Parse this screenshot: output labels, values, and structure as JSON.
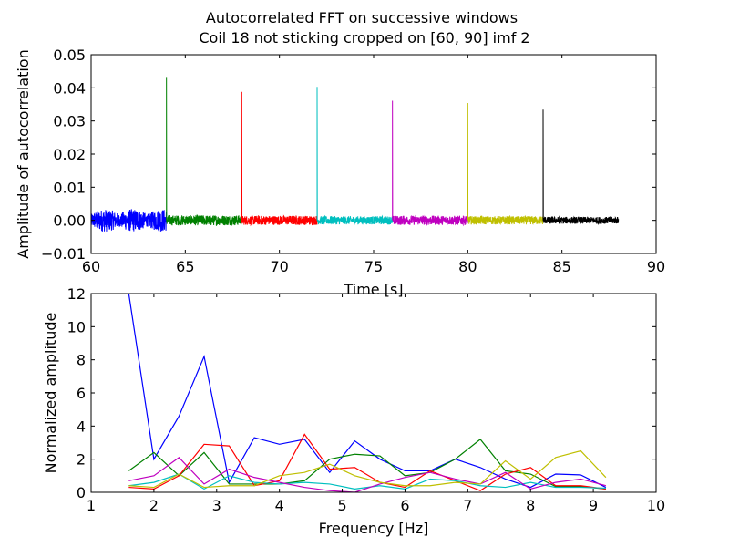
{
  "figure": {
    "title_line1": "Autocorrelated FFT on successive windows",
    "title_line2": "Coil 18 not sticking cropped on [60, 90] imf 2"
  },
  "chart_data": [
    {
      "type": "line",
      "xlabel": "Time [s]",
      "ylabel": "Amplitude of autocorrelation",
      "xlim": [
        60,
        90
      ],
      "ylim": [
        -0.01,
        0.05
      ],
      "xticks": [
        "60",
        "65",
        "70",
        "75",
        "80",
        "85",
        "90"
      ],
      "yticks": [
        "−0.01",
        "0.00",
        "0.01",
        "0.02",
        "0.03",
        "0.04",
        "0.05"
      ],
      "grid": false,
      "series": [
        {
          "x_range": [
            60,
            64
          ],
          "noise_amplitude": 0.0045,
          "peak": null,
          "color": "#0000ff"
        },
        {
          "x_range": [
            64,
            68
          ],
          "noise_amplitude": 0.0022,
          "peak": 0.043,
          "color": "#008000"
        },
        {
          "x_range": [
            68,
            72
          ],
          "noise_amplitude": 0.002,
          "peak": 0.0388,
          "color": "#ff0000"
        },
        {
          "x_range": [
            72,
            76
          ],
          "noise_amplitude": 0.0018,
          "peak": 0.0403,
          "color": "#00bfbf"
        },
        {
          "x_range": [
            76,
            80
          ],
          "noise_amplitude": 0.002,
          "peak": 0.0361,
          "color": "#bf00bf"
        },
        {
          "x_range": [
            80,
            84
          ],
          "noise_amplitude": 0.0018,
          "peak": 0.0354,
          "color": "#bfbf00"
        },
        {
          "x_range": [
            84,
            88
          ],
          "noise_amplitude": 0.0015,
          "peak": 0.0334,
          "color": "#000000"
        }
      ]
    },
    {
      "type": "line",
      "xlabel": "Frequency [Hz]",
      "ylabel": "Normalized amplitude",
      "xlim": [
        1,
        10
      ],
      "ylim": [
        0,
        12
      ],
      "xticks": [
        "1",
        "2",
        "3",
        "4",
        "5",
        "6",
        "7",
        "8",
        "9",
        "10"
      ],
      "yticks": [
        "0",
        "2",
        "4",
        "6",
        "8",
        "10",
        "12"
      ],
      "grid": false,
      "x": [
        1.6,
        2.0,
        2.4,
        2.8,
        3.2,
        3.6,
        4.0,
        4.4,
        4.8,
        5.2,
        5.6,
        6.0,
        6.4,
        6.8,
        7.2,
        7.6,
        8.0,
        8.4,
        8.8,
        9.2
      ],
      "series": [
        {
          "color": "#0000ff",
          "values": [
            12.0,
            2.0,
            4.6,
            8.2,
            0.6,
            3.3,
            2.9,
            3.2,
            1.2,
            3.1,
            2.0,
            1.3,
            1.3,
            2.0,
            1.5,
            0.8,
            0.3,
            1.1,
            1.05,
            0.3
          ]
        },
        {
          "color": "#008000",
          "values": [
            1.3,
            2.4,
            1.0,
            2.4,
            0.5,
            0.5,
            0.5,
            0.7,
            2.0,
            2.3,
            2.2,
            1.0,
            1.2,
            2.0,
            3.2,
            1.3,
            1.1,
            0.35,
            0.35,
            0.2
          ]
        },
        {
          "color": "#ff0000",
          "values": [
            0.3,
            0.2,
            1.0,
            2.9,
            2.8,
            0.4,
            0.7,
            3.5,
            1.4,
            1.5,
            0.6,
            0.3,
            1.3,
            0.7,
            0.1,
            1.1,
            1.5,
            0.4,
            0.4,
            0.2
          ]
        },
        {
          "color": "#00bfbf",
          "values": [
            0.4,
            0.6,
            1.1,
            0.2,
            1.0,
            0.6,
            0.5,
            0.6,
            0.5,
            0.2,
            0.4,
            0.2,
            0.8,
            0.7,
            0.4,
            0.3,
            0.6,
            0.3,
            0.3,
            0.25
          ]
        },
        {
          "color": "#bf00bf",
          "values": [
            0.7,
            1.0,
            2.1,
            0.5,
            1.4,
            0.9,
            0.6,
            0.3,
            0.1,
            0.0,
            0.5,
            0.9,
            1.2,
            0.8,
            0.5,
            1.2,
            0.2,
            0.6,
            0.8,
            0.4
          ]
        },
        {
          "color": "#bfbf00",
          "values": [
            0.4,
            0.3,
            1.1,
            0.3,
            0.4,
            0.4,
            1.0,
            1.2,
            1.7,
            1.0,
            0.6,
            0.4,
            0.4,
            0.6,
            0.5,
            1.9,
            0.8,
            2.1,
            2.5,
            0.9
          ]
        }
      ]
    }
  ]
}
